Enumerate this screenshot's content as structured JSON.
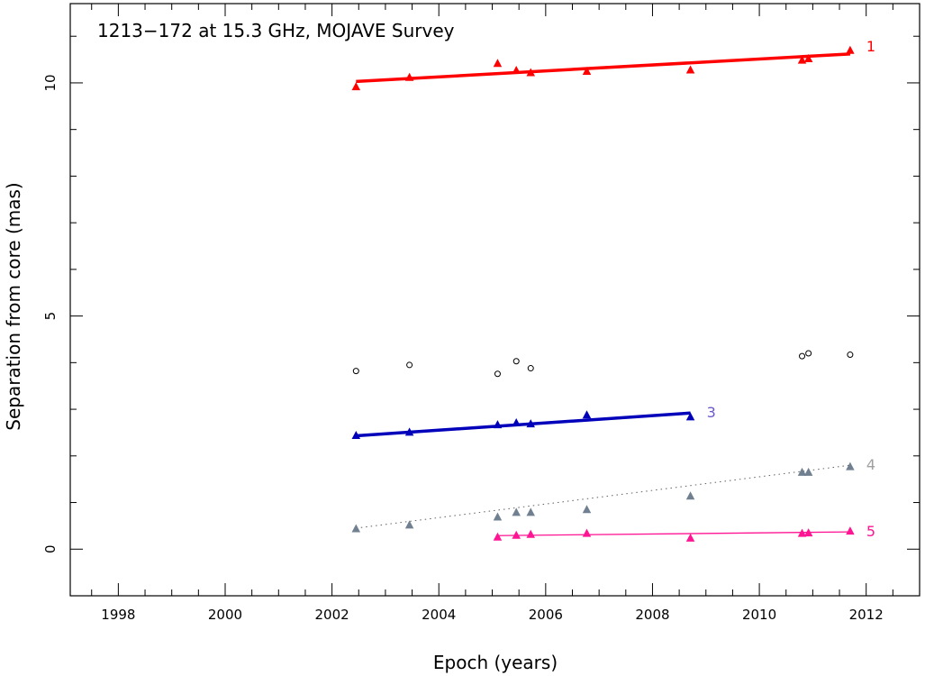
{
  "chart_data": {
    "type": "scatter",
    "title": "1213−172 at 15.3 GHz, MOJAVE Survey",
    "xlabel": "Epoch (years)",
    "ylabel": "Separation from core (mas)",
    "xlim": [
      1997.1,
      2013.0
    ],
    "ylim": [
      -1.0,
      11.7
    ],
    "xticks": [
      1998,
      2000,
      2002,
      2004,
      2006,
      2008,
      2010,
      2012
    ],
    "xtick_labels": [
      "1998",
      "2000",
      "2002",
      "2004",
      "2006",
      "2008",
      "2010",
      "2012"
    ],
    "yticks": [
      0,
      5,
      10
    ],
    "ytick_labels": [
      "0",
      "5",
      "10"
    ],
    "grid": false,
    "series": [
      {
        "name": "1",
        "color": "#ff0000",
        "marker": "triangle",
        "fit_style": "solid-thick",
        "fit": [
          [
            2002.45,
            10.03
          ],
          [
            2011.7,
            10.62
          ]
        ],
        "x": [
          2002.45,
          2003.45,
          2005.1,
          2005.45,
          2005.72,
          2006.77,
          2008.71,
          2010.8,
          2010.92,
          2011.7
        ],
        "y": [
          9.93,
          10.13,
          10.43,
          10.28,
          10.23,
          10.26,
          10.29,
          10.5,
          10.53,
          10.71
        ]
      },
      {
        "name": "3",
        "color": "#0000bb",
        "marker": "triangle",
        "fit_style": "solid-thick",
        "fit": [
          [
            2002.45,
            2.43
          ],
          [
            2008.71,
            2.92
          ]
        ],
        "x": [
          2002.45,
          2003.45,
          2005.1,
          2005.45,
          2005.72,
          2006.77,
          2008.71
        ],
        "y": [
          2.45,
          2.52,
          2.68,
          2.72,
          2.7,
          2.89,
          2.85
        ]
      },
      {
        "name": "4",
        "color": "#708090",
        "marker": "triangle",
        "fit_style": "dotted",
        "fit": [
          [
            2002.45,
            0.45
          ],
          [
            2011.7,
            1.8
          ]
        ],
        "x": [
          2002.45,
          2003.45,
          2005.1,
          2005.45,
          2005.72,
          2006.77,
          2008.71,
          2010.8,
          2010.92,
          2011.7
        ],
        "y": [
          0.45,
          0.53,
          0.7,
          0.8,
          0.8,
          0.86,
          1.15,
          1.66,
          1.66,
          1.78
        ]
      },
      {
        "name": "5",
        "color": "#ff1493",
        "marker": "triangle",
        "fit_style": "solid-thin",
        "fit": [
          [
            2005.1,
            0.29
          ],
          [
            2011.7,
            0.37
          ]
        ],
        "x": [
          2005.1,
          2005.45,
          2005.72,
          2006.77,
          2008.71,
          2010.8,
          2010.92,
          2011.7
        ],
        "y": [
          0.27,
          0.31,
          0.33,
          0.35,
          0.25,
          0.35,
          0.36,
          0.4
        ]
      },
      {
        "name": "",
        "color": "#000000",
        "marker": "circle-open",
        "fit_style": "none",
        "x": [
          2002.45,
          2003.45,
          2005.1,
          2005.45,
          2005.72,
          2010.8,
          2010.92,
          2011.7
        ],
        "y": [
          3.82,
          3.95,
          3.76,
          4.03,
          3.88,
          4.14,
          4.2,
          4.17
        ]
      }
    ]
  }
}
